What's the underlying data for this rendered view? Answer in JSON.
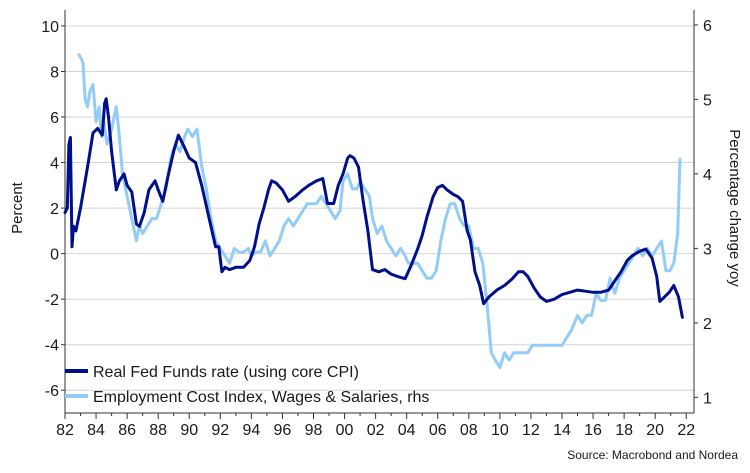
{
  "chart_data": {
    "type": "line",
    "xlabel": "",
    "ylabel": "Percent",
    "y2label": "Percentage change yoy",
    "xlim": [
      1982,
      2022.5
    ],
    "ylim": [
      -7,
      10.7
    ],
    "y2lim": [
      0.79,
      6.2
    ],
    "x_ticks": [
      1982,
      1984,
      1986,
      1988,
      1990,
      1992,
      1994,
      1996,
      1998,
      2000,
      2002,
      2004,
      2006,
      2008,
      2010,
      2012,
      2014,
      2016,
      2018,
      2020,
      2022
    ],
    "x_tick_labels": [
      "82",
      "84",
      "86",
      "88",
      "90",
      "92",
      "94",
      "96",
      "98",
      "00",
      "02",
      "04",
      "06",
      "08",
      "10",
      "12",
      "14",
      "16",
      "18",
      "20",
      "22"
    ],
    "y_ticks": [
      -6,
      -4,
      -2,
      0,
      2,
      4,
      6,
      8,
      10
    ],
    "y2_ticks": [
      1,
      2,
      3,
      4,
      5,
      6
    ],
    "grid": true,
    "legend_position": "bottom-left",
    "source": "Source: Macrobond and Nordea",
    "series": [
      {
        "name": "Real Fed Funds rate (using core CPI)",
        "axis": "left",
        "color": "#000f8c",
        "points": [
          [
            1982.0,
            1.8
          ],
          [
            1982.15,
            2.0
          ],
          [
            1982.25,
            4.8
          ],
          [
            1982.35,
            5.1
          ],
          [
            1982.45,
            0.3
          ],
          [
            1982.55,
            1.2
          ],
          [
            1982.7,
            1.0
          ],
          [
            1983.0,
            2.0
          ],
          [
            1983.5,
            4.0
          ],
          [
            1983.8,
            5.3
          ],
          [
            1984.1,
            5.5
          ],
          [
            1984.4,
            5.2
          ],
          [
            1984.55,
            6.6
          ],
          [
            1984.65,
            6.8
          ],
          [
            1984.8,
            6.0
          ],
          [
            1985.0,
            4.5
          ],
          [
            1985.3,
            2.8
          ],
          [
            1985.5,
            3.2
          ],
          [
            1985.8,
            3.5
          ],
          [
            1986.0,
            3.0
          ],
          [
            1986.3,
            2.7
          ],
          [
            1986.6,
            1.3
          ],
          [
            1986.8,
            1.2
          ],
          [
            1987.1,
            1.8
          ],
          [
            1987.4,
            2.8
          ],
          [
            1987.8,
            3.2
          ],
          [
            1988.0,
            2.8
          ],
          [
            1988.3,
            2.3
          ],
          [
            1988.6,
            3.3
          ],
          [
            1989.0,
            4.5
          ],
          [
            1989.3,
            5.2
          ],
          [
            1989.6,
            4.8
          ],
          [
            1990.0,
            4.2
          ],
          [
            1990.4,
            4.0
          ],
          [
            1990.8,
            3.0
          ],
          [
            1991.3,
            1.5
          ],
          [
            1991.7,
            0.3
          ],
          [
            1991.9,
            0.3
          ],
          [
            1992.1,
            -0.8
          ],
          [
            1992.3,
            -0.6
          ],
          [
            1992.6,
            -0.7
          ],
          [
            1993.0,
            -0.6
          ],
          [
            1993.5,
            -0.6
          ],
          [
            1993.9,
            -0.3
          ],
          [
            1994.2,
            0.3
          ],
          [
            1994.5,
            1.3
          ],
          [
            1994.8,
            2.0
          ],
          [
            1995.1,
            2.8
          ],
          [
            1995.3,
            3.2
          ],
          [
            1995.6,
            3.1
          ],
          [
            1996.0,
            2.8
          ],
          [
            1996.4,
            2.3
          ],
          [
            1996.8,
            2.5
          ],
          [
            1997.3,
            2.8
          ],
          [
            1997.7,
            3.0
          ],
          [
            1998.2,
            3.2
          ],
          [
            1998.6,
            3.3
          ],
          [
            1998.9,
            2.2
          ],
          [
            1999.3,
            2.2
          ],
          [
            1999.6,
            3.0
          ],
          [
            1999.9,
            3.5
          ],
          [
            2000.2,
            4.2
          ],
          [
            2000.35,
            4.3
          ],
          [
            2000.6,
            4.2
          ],
          [
            2000.9,
            3.8
          ],
          [
            2001.2,
            2.3
          ],
          [
            2001.5,
            1.0
          ],
          [
            2001.8,
            -0.7
          ],
          [
            2002.2,
            -0.8
          ],
          [
            2002.6,
            -0.7
          ],
          [
            2003.0,
            -0.9
          ],
          [
            2003.4,
            -1.0
          ],
          [
            2003.9,
            -1.1
          ],
          [
            2004.3,
            -0.5
          ],
          [
            2004.7,
            0.2
          ],
          [
            2005.0,
            0.8
          ],
          [
            2005.3,
            1.6
          ],
          [
            2005.7,
            2.5
          ],
          [
            2006.0,
            2.9
          ],
          [
            2006.3,
            3.0
          ],
          [
            2006.6,
            2.8
          ],
          [
            2007.0,
            2.6
          ],
          [
            2007.3,
            2.5
          ],
          [
            2007.6,
            2.3
          ],
          [
            2007.9,
            1.0
          ],
          [
            2008.1,
            0.6
          ],
          [
            2008.4,
            -0.8
          ],
          [
            2008.7,
            -1.4
          ],
          [
            2008.95,
            -2.2
          ],
          [
            2009.3,
            -1.9
          ],
          [
            2009.8,
            -1.6
          ],
          [
            2010.3,
            -1.4
          ],
          [
            2010.8,
            -1.1
          ],
          [
            2011.2,
            -0.8
          ],
          [
            2011.5,
            -0.8
          ],
          [
            2011.8,
            -1.0
          ],
          [
            2012.2,
            -1.5
          ],
          [
            2012.6,
            -1.9
          ],
          [
            2013.0,
            -2.1
          ],
          [
            2013.5,
            -2.0
          ],
          [
            2014.0,
            -1.8
          ],
          [
            2014.5,
            -1.7
          ],
          [
            2015.0,
            -1.6
          ],
          [
            2015.5,
            -1.65
          ],
          [
            2016.0,
            -1.7
          ],
          [
            2016.5,
            -1.7
          ],
          [
            2017.0,
            -1.6
          ],
          [
            2017.4,
            -1.2
          ],
          [
            2017.8,
            -0.8
          ],
          [
            2018.2,
            -0.3
          ],
          [
            2018.5,
            -0.1
          ],
          [
            2019.0,
            0.1
          ],
          [
            2019.4,
            0.2
          ],
          [
            2019.8,
            -0.2
          ],
          [
            2020.1,
            -1.0
          ],
          [
            2020.3,
            -2.1
          ],
          [
            2020.6,
            -1.9
          ],
          [
            2020.9,
            -1.7
          ],
          [
            2021.2,
            -1.4
          ],
          [
            2021.5,
            -1.9
          ],
          [
            2021.75,
            -2.8
          ]
        ]
      },
      {
        "name": "Employment Cost Index, Wages & Salaries, rhs",
        "axis": "right",
        "color": "#93ccf6",
        "points": [
          [
            1982.9,
            5.6
          ],
          [
            1983.15,
            5.5
          ],
          [
            1983.3,
            5.0
          ],
          [
            1983.45,
            4.9
          ],
          [
            1983.6,
            5.1
          ],
          [
            1983.8,
            5.2
          ],
          [
            1984.0,
            4.7
          ],
          [
            1984.2,
            4.9
          ],
          [
            1984.35,
            4.5
          ],
          [
            1984.5,
            4.7
          ],
          [
            1984.7,
            4.4
          ],
          [
            1985.0,
            4.6
          ],
          [
            1985.3,
            4.9
          ],
          [
            1985.5,
            4.5
          ],
          [
            1985.7,
            4.0
          ],
          [
            1986.0,
            3.7
          ],
          [
            1986.2,
            3.5
          ],
          [
            1986.4,
            3.3
          ],
          [
            1986.6,
            3.1
          ],
          [
            1986.8,
            3.3
          ],
          [
            1987.0,
            3.2
          ],
          [
            1987.3,
            3.3
          ],
          [
            1987.6,
            3.4
          ],
          [
            1987.9,
            3.4
          ],
          [
            1988.2,
            3.6
          ],
          [
            1988.5,
            3.8
          ],
          [
            1988.8,
            4.2
          ],
          [
            1989.1,
            4.4
          ],
          [
            1989.4,
            4.3
          ],
          [
            1989.7,
            4.5
          ],
          [
            1989.9,
            4.6
          ],
          [
            1990.2,
            4.5
          ],
          [
            1990.5,
            4.6
          ],
          [
            1990.8,
            4.1
          ],
          [
            1991.1,
            3.8
          ],
          [
            1991.4,
            3.4
          ],
          [
            1991.7,
            3.1
          ],
          [
            1992.0,
            3.0
          ],
          [
            1992.3,
            2.9
          ],
          [
            1992.6,
            2.8
          ],
          [
            1992.9,
            3.0
          ],
          [
            1993.2,
            2.95
          ],
          [
            1993.5,
            2.95
          ],
          [
            1993.8,
            3.0
          ],
          [
            1994.0,
            2.9
          ],
          [
            1994.3,
            2.95
          ],
          [
            1994.6,
            2.95
          ],
          [
            1994.9,
            3.1
          ],
          [
            1995.2,
            2.9
          ],
          [
            1995.5,
            3.0
          ],
          [
            1995.8,
            3.1
          ],
          [
            1996.1,
            3.3
          ],
          [
            1996.4,
            3.4
          ],
          [
            1996.7,
            3.3
          ],
          [
            1997.0,
            3.4
          ],
          [
            1997.3,
            3.5
          ],
          [
            1997.6,
            3.6
          ],
          [
            1997.9,
            3.6
          ],
          [
            1998.2,
            3.6
          ],
          [
            1998.5,
            3.7
          ],
          [
            1998.8,
            3.6
          ],
          [
            1999.1,
            3.5
          ],
          [
            1999.4,
            3.4
          ],
          [
            1999.7,
            3.5
          ],
          [
            1999.9,
            3.9
          ],
          [
            2000.2,
            4.0
          ],
          [
            2000.5,
            3.8
          ],
          [
            2000.8,
            3.8
          ],
          [
            2001.0,
            3.9
          ],
          [
            2001.3,
            3.8
          ],
          [
            2001.6,
            3.7
          ],
          [
            2001.8,
            3.4
          ],
          [
            2002.1,
            3.2
          ],
          [
            2002.4,
            3.3
          ],
          [
            2002.7,
            3.1
          ],
          [
            2003.0,
            3.0
          ],
          [
            2003.3,
            2.9
          ],
          [
            2003.6,
            3.0
          ],
          [
            2003.9,
            2.9
          ],
          [
            2004.1,
            2.8
          ],
          [
            2004.4,
            2.8
          ],
          [
            2004.7,
            2.8
          ],
          [
            2005.0,
            2.7
          ],
          [
            2005.3,
            2.6
          ],
          [
            2005.6,
            2.6
          ],
          [
            2005.9,
            2.7
          ],
          [
            2006.2,
            3.1
          ],
          [
            2006.5,
            3.4
          ],
          [
            2006.8,
            3.6
          ],
          [
            2007.1,
            3.6
          ],
          [
            2007.4,
            3.4
          ],
          [
            2007.7,
            3.3
          ],
          [
            2008.0,
            3.3
          ],
          [
            2008.3,
            3.0
          ],
          [
            2008.6,
            3.0
          ],
          [
            2008.9,
            2.8
          ],
          [
            2009.2,
            2.2
          ],
          [
            2009.45,
            1.6
          ],
          [
            2009.7,
            1.5
          ],
          [
            2010.0,
            1.4
          ],
          [
            2010.3,
            1.6
          ],
          [
            2010.6,
            1.5
          ],
          [
            2010.9,
            1.6
          ],
          [
            2011.2,
            1.6
          ],
          [
            2011.5,
            1.6
          ],
          [
            2011.8,
            1.6
          ],
          [
            2012.1,
            1.7
          ],
          [
            2012.4,
            1.7
          ],
          [
            2012.7,
            1.7
          ],
          [
            2013.0,
            1.7
          ],
          [
            2013.3,
            1.7
          ],
          [
            2013.6,
            1.7
          ],
          [
            2014.0,
            1.7
          ],
          [
            2014.3,
            1.8
          ],
          [
            2014.6,
            1.9
          ],
          [
            2015.0,
            2.1
          ],
          [
            2015.3,
            2.0
          ],
          [
            2015.6,
            2.1
          ],
          [
            2015.9,
            2.1
          ],
          [
            2016.2,
            2.4
          ],
          [
            2016.5,
            2.3
          ],
          [
            2016.8,
            2.3
          ],
          [
            2017.1,
            2.6
          ],
          [
            2017.4,
            2.4
          ],
          [
            2017.7,
            2.6
          ],
          [
            2018.0,
            2.7
          ],
          [
            2018.3,
            2.8
          ],
          [
            2018.6,
            2.9
          ],
          [
            2018.9,
            3.0
          ],
          [
            2019.2,
            2.9
          ],
          [
            2019.5,
            3.0
          ],
          [
            2019.8,
            2.9
          ],
          [
            2020.1,
            3.0
          ],
          [
            2020.4,
            3.1
          ],
          [
            2020.7,
            2.7
          ],
          [
            2020.95,
            2.7
          ],
          [
            2021.2,
            2.8
          ],
          [
            2021.45,
            3.2
          ],
          [
            2021.6,
            4.2
          ]
        ]
      }
    ]
  }
}
